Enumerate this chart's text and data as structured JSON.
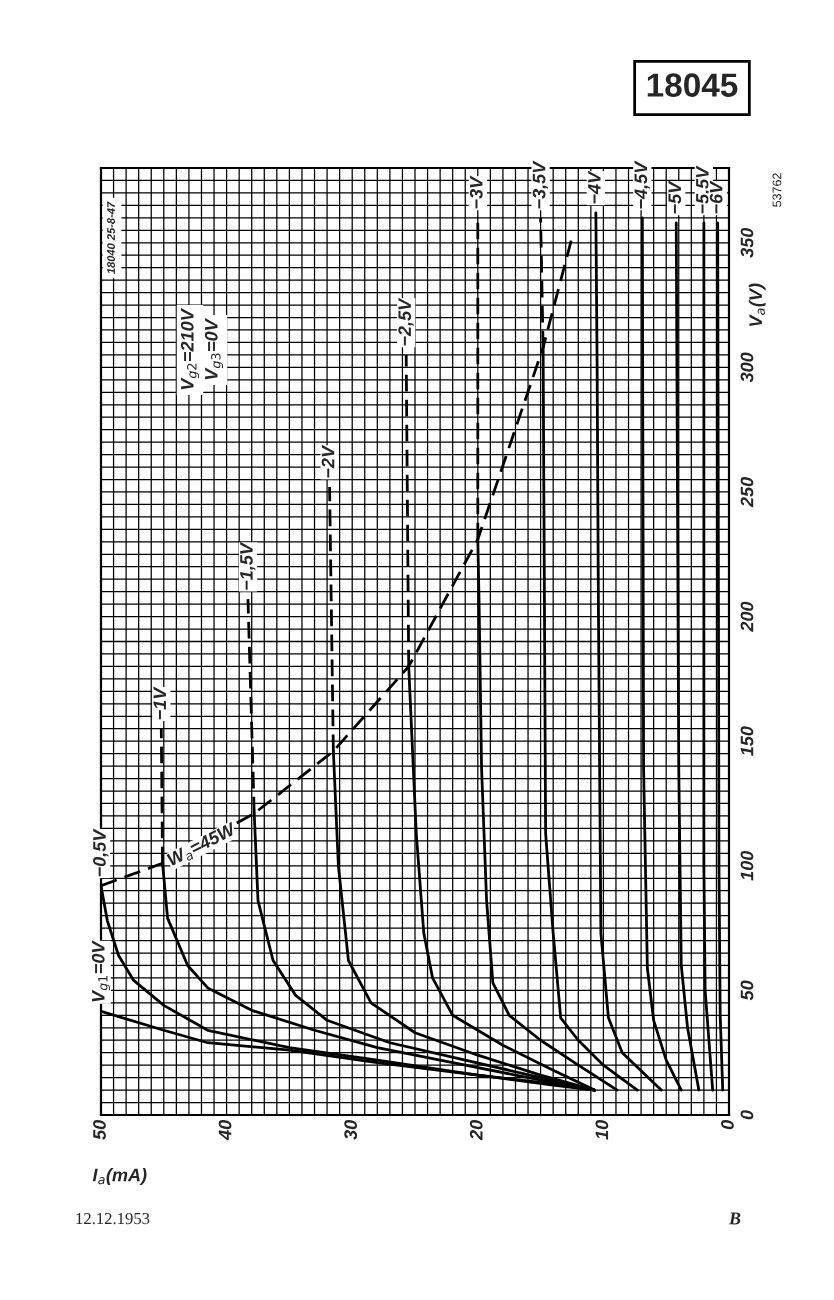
{
  "chart_data": {
    "type": "line",
    "xlabel": "I$_{a}$(mA)",
    "ylabel": "V$_{a}$(V)",
    "xlim": [
      50,
      0
    ],
    "xticks": [
      50,
      40,
      30,
      20,
      10,
      0
    ],
    "ylim": [
      0,
      380
    ],
    "yticks": [
      0,
      50,
      100,
      150,
      200,
      250,
      300,
      350
    ],
    "grid": true,
    "legend": false,
    "series": [
      {
        "name": "V$_{g1}$=0V",
        "color": "#000000",
        "line_style": "solid",
        "x": [
          10.7,
          14,
          20,
          28,
          35,
          41.5,
          45,
          50
        ],
        "values": [
          10,
          12.5,
          16,
          21,
          26,
          29,
          34,
          41.6
        ]
      },
      {
        "name": "−0,5V",
        "color": "#000000",
        "line_style": "solid",
        "x": [
          10.7,
          14,
          20,
          28,
          35,
          41.5,
          45,
          47.4,
          48.6,
          49.5,
          50
        ],
        "values": [
          10,
          12,
          16,
          22,
          27,
          34,
          44,
          54,
          64,
          78,
          92
        ]
      },
      {
        "color": "#000000",
        "line_style": "solid",
        "x": [
          10.7,
          16,
          22,
          28,
          33,
          38,
          41.5,
          43.1,
          44.7,
          45.1
        ],
        "values": [
          10,
          15,
          21,
          27,
          34,
          42,
          51,
          60,
          79,
          101
        ]
      },
      {
        "name": "−1V",
        "color": "#000000",
        "line_style": "dashed",
        "x": [
          45.1,
          45.2
        ],
        "values": [
          101,
          155
        ]
      },
      {
        "color": "#000000",
        "line_style": "solid",
        "x": [
          10.7,
          15,
          21,
          27,
          32,
          34.5,
          36.3,
          37.5,
          37.8
        ],
        "values": [
          10,
          15,
          22,
          29,
          38,
          48,
          62,
          86,
          121
        ]
      },
      {
        "name": "−1,5V",
        "color": "#000000",
        "line_style": "dashed",
        "x": [
          37.8,
          38.3
        ],
        "values": [
          121,
          207
        ]
      },
      {
        "color": "#000000",
        "line_style": "solid",
        "x": [
          10.7,
          15,
          20,
          25,
          28.5,
          30.3,
          31.1,
          31.5
        ],
        "values": [
          10,
          16,
          24,
          33,
          45,
          62,
          100,
          146
        ]
      },
      {
        "name": "−2V",
        "color": "#000000",
        "line_style": "dashed",
        "x": [
          31.5,
          31.8
        ],
        "values": [
          146,
          252
        ]
      },
      {
        "color": "#000000",
        "line_style": "solid",
        "x": [
          10.7,
          14,
          18,
          22,
          23.6,
          24.3,
          24.9,
          25.5
        ],
        "values": [
          10,
          18,
          28,
          40,
          55,
          73,
          113,
          180
        ]
      },
      {
        "name": "−2,5V",
        "color": "#000000",
        "line_style": "dashed",
        "x": [
          25.5,
          25.7
        ],
        "values": [
          180,
          305
        ]
      },
      {
        "color": "#000000",
        "line_style": "solid",
        "x": [
          8.9,
          12,
          15,
          17.5,
          18.8,
          19.3,
          19.7,
          19.9,
          20.0
        ],
        "values": [
          10,
          20,
          30,
          40,
          53,
          86,
          139,
          206,
          231
        ]
      },
      {
        "name": "−3V",
        "color": "#000000",
        "line_style": "dashed",
        "x": [
          20.0,
          20.0
        ],
        "values": [
          231,
          360
        ]
      },
      {
        "color": "#000000",
        "line_style": "solid",
        "x": [
          7.3,
          10,
          12,
          13.4,
          14.0,
          14.6,
          14.8
        ],
        "values": [
          10,
          20,
          30,
          39,
          73,
          113,
          308
        ]
      },
      {
        "name": "−3,5V",
        "color": "#000000",
        "line_style": "dashed",
        "x": [
          14.8,
          15.0
        ],
        "values": [
          308,
          360
        ]
      },
      {
        "name": "−4V",
        "color": "#000000",
        "line_style": "solid",
        "x": [
          5.4,
          8.5,
          9.6,
          10.2,
          10.4,
          10.5,
          10.6
        ],
        "values": [
          10,
          25,
          39,
          73,
          206,
          300,
          362
        ]
      },
      {
        "name": "−4,5V",
        "color": "#000000",
        "line_style": "solid",
        "x": [
          3.8,
          5,
          6.0,
          6.5,
          6.8,
          6.9
        ],
        "values": [
          10,
          22,
          38,
          59,
          139,
          360
        ]
      },
      {
        "name": "−5V",
        "color": "#000000",
        "line_style": "solid",
        "x": [
          2.4,
          3.3,
          3.8,
          4.0,
          4.2
        ],
        "values": [
          10,
          35,
          60,
          139,
          358
        ]
      },
      {
        "name": "−5,5V",
        "color": "#000000",
        "line_style": "solid",
        "x": [
          1.3,
          1.9,
          2.0,
          2.0
        ],
        "values": [
          10,
          50,
          100,
          358
        ]
      },
      {
        "name": "−6V",
        "color": "#000000",
        "line_style": "solid",
        "x": [
          0.5,
          0.7,
          0.8,
          0.9
        ],
        "values": [
          10,
          40,
          100,
          358
        ]
      },
      {
        "color": "#000000",
        "line_style": "dashed",
        "x": [
          50,
          45.1,
          37.8,
          31.5,
          25.5,
          20.0,
          14.8,
          12.4
        ],
        "values": [
          92,
          101,
          121,
          146,
          180,
          231,
          308,
          354
        ]
      }
    ],
    "annotations": [
      "V$_{g2}$=210V",
      "V$_{g3}$=0V",
      "18040 25-8-47",
      "53762",
      "18045",
      "12.12.1953",
      "B",
      {
        "text": "W$_{a}$=45W",
        "x": 42,
        "y": 108
      }
    ]
  }
}
